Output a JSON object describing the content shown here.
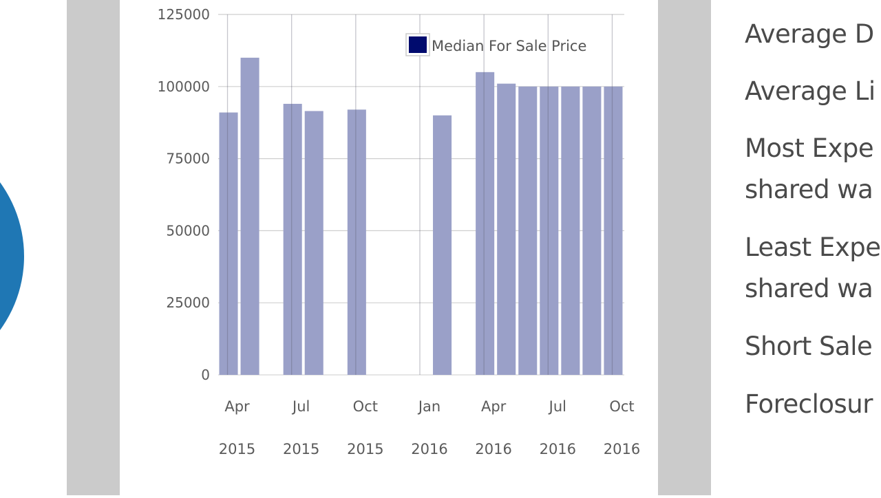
{
  "chart_data": {
    "type": "bar",
    "title": "",
    "xlabel": "",
    "ylabel": "",
    "ylim": [
      0,
      125000
    ],
    "yticks": [
      0,
      25000,
      50000,
      75000,
      100000,
      125000
    ],
    "ytick_labels": [
      "0",
      "25000",
      "50000",
      "75000",
      "100000",
      "125000"
    ],
    "grid": true,
    "legend_position": "top-right",
    "legend": [
      "Median For Sale Price"
    ],
    "categories": [
      "Apr 2015",
      "May 2015",
      "Jun 2015",
      "Jul 2015",
      "Aug 2015",
      "Sep 2015",
      "Oct 2015",
      "Nov 2015",
      "Dec 2015",
      "Jan 2016",
      "Feb 2016",
      "Mar 2016",
      "Apr 2016",
      "May 2016",
      "Jun 2016",
      "Jul 2016",
      "Aug 2016",
      "Sep 2016",
      "Oct 2016"
    ],
    "series": [
      {
        "name": "Median For Sale Price",
        "values": [
          91000,
          110000,
          null,
          94000,
          91500,
          null,
          92000,
          null,
          null,
          null,
          90000,
          null,
          105000,
          101000,
          100000,
          100000,
          100000,
          100000,
          100000
        ]
      }
    ],
    "xtick_labels": [
      {
        "month": "Apr",
        "year": "2015"
      },
      {
        "month": "Jul",
        "year": "2015"
      },
      {
        "month": "Oct",
        "year": "2015"
      },
      {
        "month": "Jan",
        "year": "2016"
      },
      {
        "month": "Apr",
        "year": "2016"
      },
      {
        "month": "Jul",
        "year": "2016"
      },
      {
        "month": "Oct",
        "year": "2016"
      }
    ],
    "colors": {
      "bar": "#9aa0c8",
      "legend_swatch": "#000b6e"
    }
  },
  "stats": {
    "lines": [
      "Average D",
      "Average Li",
      "Most Expe",
      "shared wa",
      "Least Expe",
      "shared wa",
      "Short Sale",
      "Foreclosur"
    ]
  }
}
